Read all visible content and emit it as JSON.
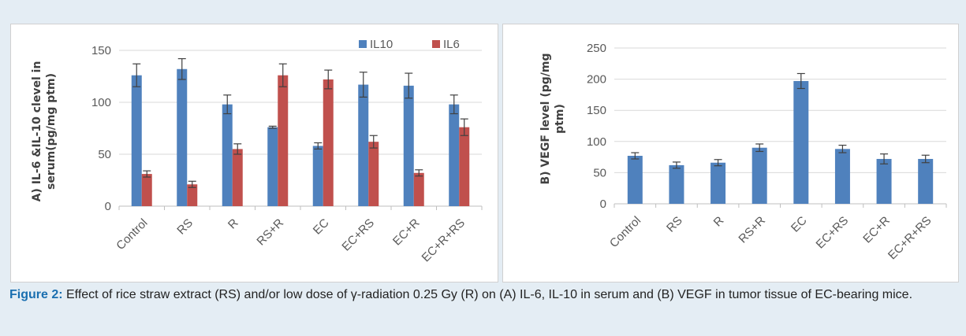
{
  "chart_data": [
    {
      "type": "bar",
      "categories": [
        "Control",
        "RS",
        "R",
        "RS+R",
        "EC",
        "EC+RS",
        "EC+R",
        "EC+R+RS"
      ],
      "series": [
        {
          "name": "IL10",
          "color": "#4f81bd",
          "values": [
            126,
            132,
            98,
            76,
            58,
            117,
            116,
            98
          ],
          "errors": [
            11,
            10,
            9,
            1,
            3,
            12,
            12,
            9
          ]
        },
        {
          "name": "IL6",
          "color": "#c0504d",
          "values": [
            31,
            21,
            55,
            126,
            122,
            62,
            32,
            76
          ],
          "errors": [
            3,
            3,
            5,
            11,
            9,
            6,
            3,
            8
          ]
        }
      ],
      "ylabel": "A) IL-6 &IL-10 clevel in serum(pg/mg ptm)",
      "ylabel_lines": [
        "A) IL-6 &IL-10 clevel in",
        "serum(pg/mg ptm)"
      ],
      "ylim": [
        0,
        150
      ],
      "yticks": [
        0,
        50,
        100,
        150
      ],
      "grid": true,
      "legend": "top-right"
    },
    {
      "type": "bar",
      "categories": [
        "Control",
        "RS",
        "R",
        "RS+R",
        "EC",
        "EC+RS",
        "EC+R",
        "EC+R+RS"
      ],
      "series": [
        {
          "name": "",
          "color": "#4f81bd",
          "values": [
            77,
            62,
            66,
            90,
            197,
            88,
            72,
            72
          ],
          "errors": [
            5,
            5,
            5,
            6,
            12,
            6,
            8,
            6
          ]
        }
      ],
      "ylabel": "B) VEGF level (pg/mg ptm)",
      "ylabel_lines": [
        "B) VEGF level (pg/mg",
        "ptm)"
      ],
      "ylim": [
        0,
        250
      ],
      "yticks": [
        0,
        50,
        100,
        150,
        200,
        250
      ],
      "grid": true,
      "legend": "none"
    }
  ],
  "caption": {
    "label": "Figure 2:",
    "text": " Effect of rice straw extract (RS) and/or low dose of γ-radiation 0.25 Gy (R) on (A) IL-6, IL-10 in serum and (B) VEGF in tumor tissue of EC-bearing mice."
  }
}
